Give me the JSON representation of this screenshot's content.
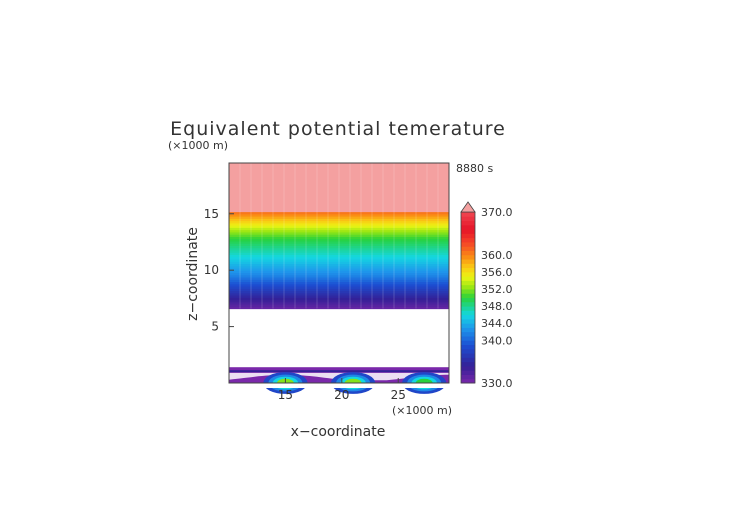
{
  "chart_data": {
    "type": "heatmap",
    "title": "Equivalent potential temerature",
    "time_label": "8880 s",
    "xlabel": "x−coordinate",
    "ylabel": "z−coordinate",
    "x_unit": "(×1000 m)",
    "z_unit": "(×1000 m)",
    "xlim": [
      10.0,
      29.5
    ],
    "ylim": [
      0.0,
      19.5
    ],
    "x_ticks": [
      "15",
      "20",
      "25"
    ],
    "y_ticks": [
      "5",
      "10",
      "15"
    ],
    "x_tick_values": [
      15,
      20,
      25
    ],
    "y_tick_values": [
      5,
      10,
      15
    ],
    "colorbar": {
      "min": 330.0,
      "max": 370.0,
      "levels": [
        330,
        331,
        332,
        333,
        334,
        335,
        336,
        337,
        338,
        339,
        340,
        341,
        342,
        343,
        344,
        345,
        346,
        347,
        348,
        349,
        350,
        351,
        352,
        353,
        354,
        355,
        356,
        357,
        358,
        359,
        360,
        361,
        362,
        363,
        364,
        365,
        366,
        367,
        368,
        369,
        370
      ],
      "labels": [
        "370.0",
        "360.0",
        "356.0",
        "352.0",
        "348.0",
        "344.0",
        "340.0",
        "330.0"
      ],
      "label_values": [
        370,
        360,
        356,
        352,
        348,
        344,
        340,
        330
      ],
      "extend_color": "#f4a0a0"
    },
    "upper_profile": {
      "z": [
        6.6,
        7.2,
        8.0,
        8.8,
        9.6,
        10.4,
        11.2,
        12.0,
        12.8,
        13.6,
        14.4,
        15.2,
        19.5
      ],
      "theta_e": [
        331,
        333,
        336,
        339,
        342,
        344,
        346,
        348,
        350,
        353,
        357,
        361,
        370
      ]
    },
    "surface_layer": {
      "top_z": 1.4,
      "inner_boundary_z": 0.9,
      "warm_cores": [
        {
          "x_center": 15.0,
          "theta_e_max": 352
        },
        {
          "x_center": 21.0,
          "theta_e_max": 352
        },
        {
          "x_center": 27.3,
          "theta_e_max": 350
        }
      ]
    }
  }
}
